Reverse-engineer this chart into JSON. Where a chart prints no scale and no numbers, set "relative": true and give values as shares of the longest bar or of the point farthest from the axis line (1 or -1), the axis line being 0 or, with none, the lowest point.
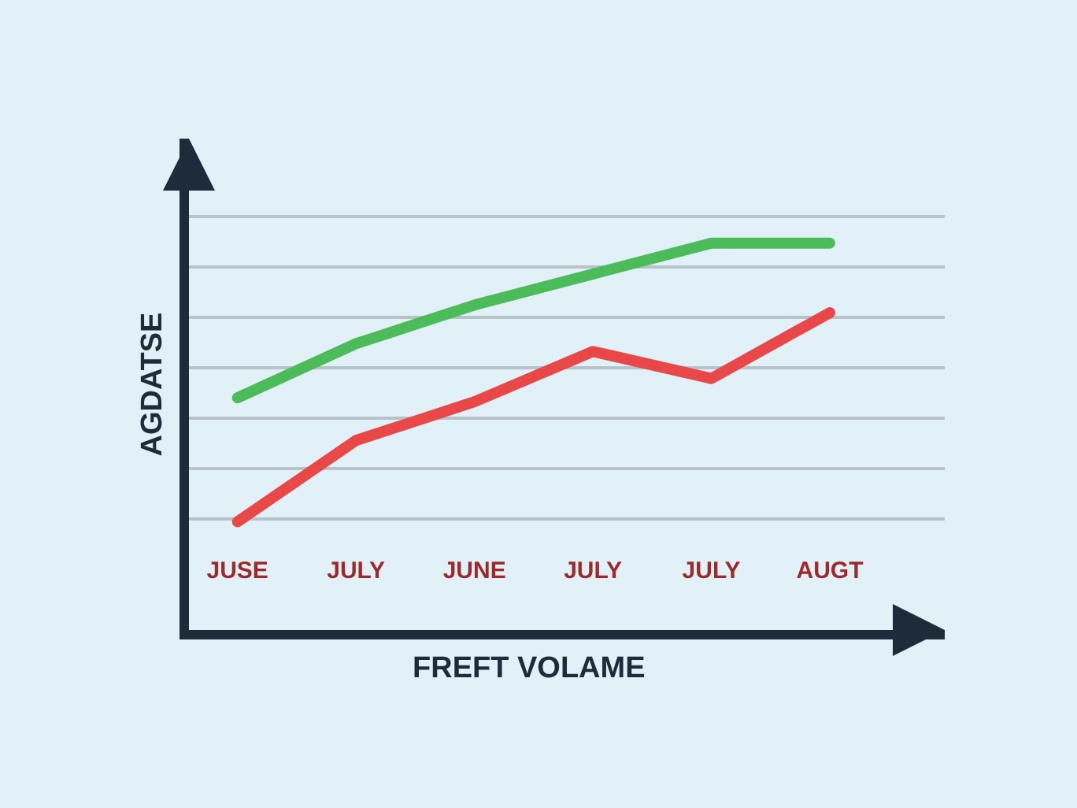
{
  "chart_data": {
    "type": "line",
    "relative": true,
    "xlabel": "FREFT VOLAME",
    "ylabel": "AGDATSE",
    "categories": [
      "JUSE",
      "JULY",
      "JUNE",
      "JULY",
      "JULY",
      "AUGT"
    ],
    "grid": "y",
    "series": [
      {
        "color": "#4cbb5a",
        "values": [
          0.6,
          0.74,
          0.84,
          0.92,
          1.0,
          1.0
        ]
      },
      {
        "color": "#e84848",
        "values": [
          0.28,
          0.49,
          0.59,
          0.72,
          0.65,
          0.82
        ]
      }
    ]
  }
}
